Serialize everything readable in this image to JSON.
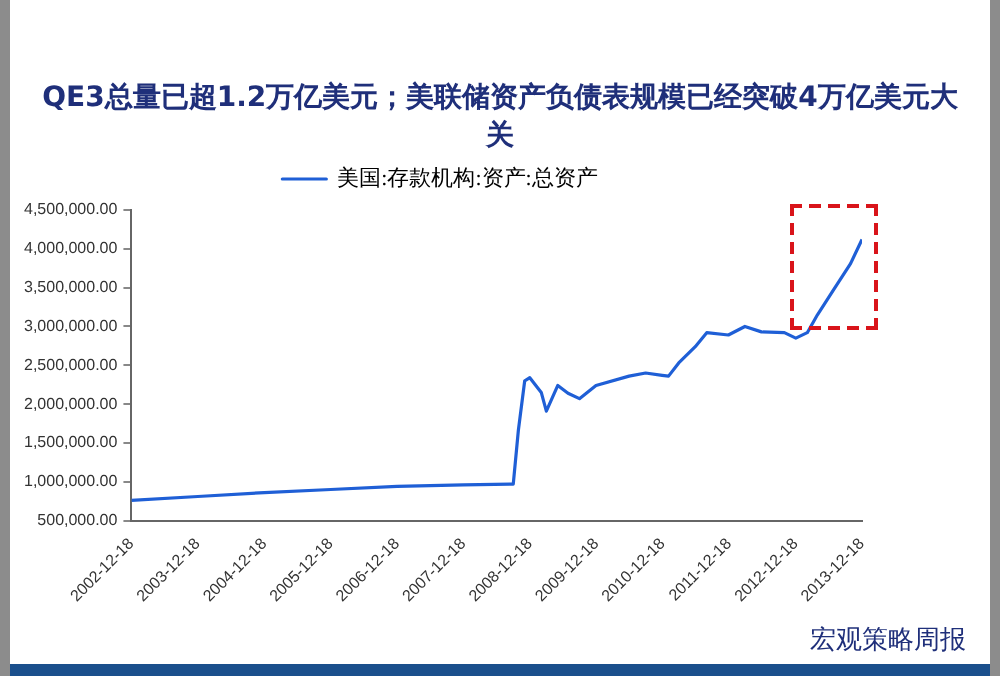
{
  "chart_data": {
    "type": "line",
    "title": "QE3总量已超1.2万亿美元；美联储资产负债表规模已经突破4万亿美元大关",
    "x": [
      "2002-12-18",
      "2003-12-18",
      "2004-12-18",
      "2005-12-18",
      "2006-12-18",
      "2007-12-18",
      "2008-09-17",
      "2008-10-15",
      "2008-11-19",
      "2008-12-17",
      "2009-02-18",
      "2009-03-18",
      "2009-05-20",
      "2009-07-15",
      "2009-09-16",
      "2009-12-16",
      "2010-06-16",
      "2010-09-15",
      "2010-12-15",
      "2011-01-19",
      "2011-03-16",
      "2011-06-15",
      "2011-08-17",
      "2011-12-14",
      "2012-03-14",
      "2012-06-13",
      "2012-10-17",
      "2012-12-19",
      "2013-02-20",
      "2013-04-17",
      "2013-07-17",
      "2013-10-16",
      "2013-12-18"
    ],
    "series": [
      {
        "name": "美国:存款机构:资产:总资产",
        "color": "#1f5fd6",
        "values": [
          760000,
          810000,
          860000,
          900000,
          940000,
          960000,
          970000,
          1660000,
          2300000,
          2340000,
          2150000,
          1910000,
          2240000,
          2140000,
          2070000,
          2240000,
          2360000,
          2400000,
          2370000,
          2360000,
          2530000,
          2740000,
          2920000,
          2890000,
          3000000,
          2930000,
          2920000,
          2850000,
          2920000,
          3150000,
          3480000,
          3810000,
          4120000
        ]
      }
    ],
    "xlim": [
      "2002-12-18",
      "2013-12-18"
    ],
    "xticks": [
      "2002-12-18",
      "2003-12-18",
      "2004-12-18",
      "2005-12-18",
      "2006-12-18",
      "2007-12-18",
      "2008-12-18",
      "2009-12-18",
      "2010-12-18",
      "2011-12-18",
      "2012-12-18",
      "2013-12-18"
    ],
    "ylim": [
      500000,
      4500000
    ],
    "yticks": [
      {
        "value": 500000,
        "label": "500,000.00"
      },
      {
        "value": 1000000,
        "label": "1,000,000.00"
      },
      {
        "value": 1500000,
        "label": "1,500,000.00"
      },
      {
        "value": 2000000,
        "label": "2,000,000.00"
      },
      {
        "value": 2500000,
        "label": "2,500,000.00"
      },
      {
        "value": 3000000,
        "label": "3,000,000.00"
      },
      {
        "value": 3500000,
        "label": "3,500,000.00"
      },
      {
        "value": 4000000,
        "label": "4,000,000.00"
      },
      {
        "value": 4500000,
        "label": "4,500,000.00"
      }
    ],
    "grid": false,
    "legend": "top",
    "marker": "none",
    "line_style": "solid",
    "annotations": [
      "宏观策略周报"
    ]
  }
}
